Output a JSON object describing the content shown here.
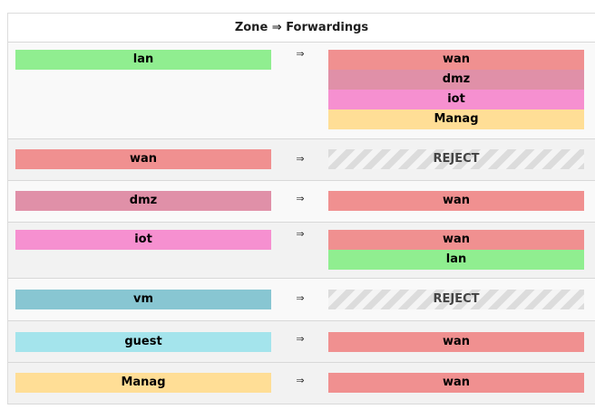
{
  "header": {
    "title": "Zone ⇒ Forwardings"
  },
  "colors": {
    "lan": "#90ee90",
    "wan": "#f09090",
    "dmz": "#e090a8",
    "iot": "#f690d0",
    "vm": "#88c6d2",
    "guest": "#a4e4ec",
    "Manag": "#ffde96",
    "reject": "#dcdcdc"
  },
  "arrow": "⇒",
  "rows": [
    {
      "source": "lan",
      "destinations": [
        "wan",
        "dmz",
        "iot",
        "Manag"
      ]
    },
    {
      "source": "wan",
      "destinations": [
        "REJECT"
      ]
    },
    {
      "source": "dmz",
      "destinations": [
        "wan"
      ]
    },
    {
      "source": "iot",
      "destinations": [
        "wan",
        "lan"
      ]
    },
    {
      "source": "vm",
      "destinations": [
        "REJECT"
      ]
    },
    {
      "source": "guest",
      "destinations": [
        "wan"
      ]
    },
    {
      "source": "Manag",
      "destinations": [
        "wan"
      ]
    }
  ]
}
